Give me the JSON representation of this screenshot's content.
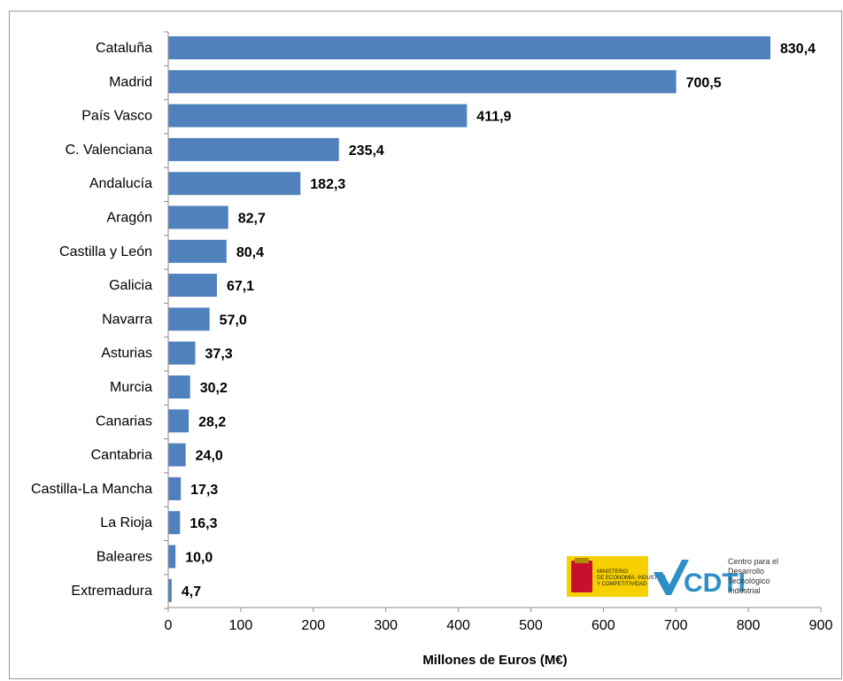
{
  "chart_data": {
    "type": "bar",
    "orientation": "horizontal",
    "categories": [
      "Cataluña",
      "Madrid",
      "País Vasco",
      "C. Valenciana",
      "Andalucía",
      "Aragón",
      "Castilla y León",
      "Galicia",
      "Navarra",
      "Asturias",
      "Murcia",
      "Canarias",
      "Cantabria",
      "Castilla-La Mancha",
      "La Rioja",
      "Baleares",
      "Extremadura"
    ],
    "values": [
      830.4,
      700.5,
      411.9,
      235.4,
      182.3,
      82.7,
      80.4,
      67.1,
      57.0,
      37.3,
      30.2,
      28.2,
      24.0,
      17.3,
      16.3,
      10.0,
      4.7
    ],
    "value_labels": [
      "830,4",
      "700,5",
      "411,9",
      "235,4",
      "182,3",
      "82,7",
      "80,4",
      "67,1",
      "57,0",
      "37,3",
      "30,2",
      "28,2",
      "24,0",
      "17,3",
      "16,3",
      "10,0",
      "4,7"
    ],
    "xlabel": "Millones de Euros (M€)",
    "xlim": [
      0,
      900
    ],
    "xticks": [
      0,
      100,
      200,
      300,
      400,
      500,
      600,
      700,
      800,
      900
    ],
    "xtick_labels": [
      "0",
      "100",
      "200",
      "300",
      "400",
      "500",
      "600",
      "700",
      "800",
      "900"
    ],
    "grid": false,
    "legend": "none",
    "bar_color": "#4f81bd"
  },
  "logos": {
    "ministry_text": [
      "MINISTERIO",
      "DE ECONOMÍA, INDUSTRIA",
      "Y COMPETITIVIDAD"
    ],
    "cdti_mark": "CDTI",
    "cdti_text": [
      "Centro para el",
      "Desarrollo",
      "Tecnológico",
      "Industrial"
    ],
    "ministry_color": "#f7d000",
    "cdti_color": "#2d8fc7"
  }
}
